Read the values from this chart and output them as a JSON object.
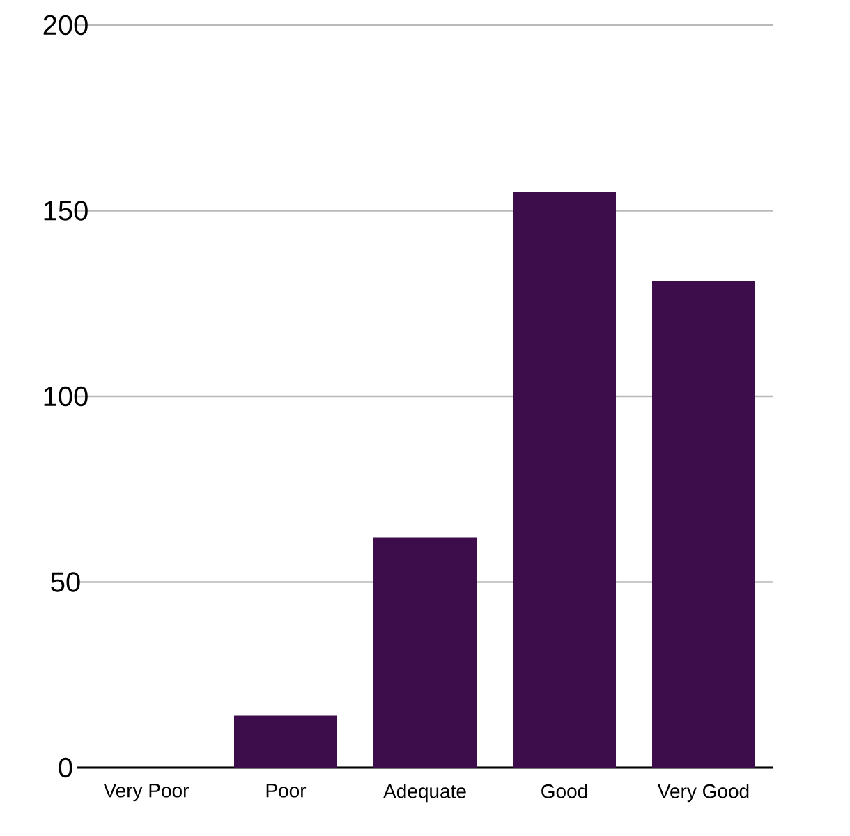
{
  "chart_data": {
    "type": "bar",
    "categories": [
      "Very Poor",
      "Poor",
      "Adequate",
      "Good",
      "Very Good"
    ],
    "values": [
      0,
      14,
      62,
      155,
      131
    ],
    "color": "#3d0c4a",
    "ylim": [
      0,
      200
    ],
    "yticks": [
      0,
      50,
      100,
      150,
      200
    ],
    "grid": "y"
  }
}
